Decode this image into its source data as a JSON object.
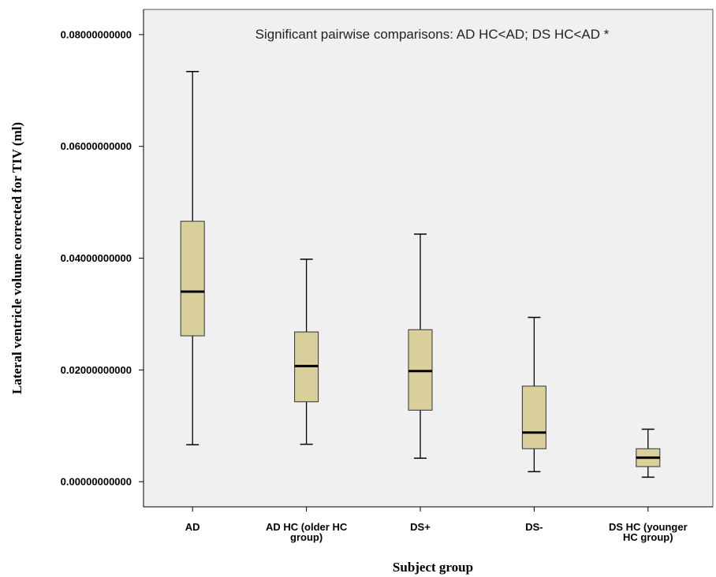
{
  "chart_data": {
    "type": "boxplot",
    "annotation": "Significant pairwise comparisons: AD HC<AD; DS HC<AD *",
    "xlabel": "Subject group",
    "ylabel": "Lateral ventricle volume corrected for TIV (ml)",
    "ylim": [
      -0.0045,
      0.0845
    ],
    "yticks": [
      0.0,
      0.02,
      0.04,
      0.06,
      0.08
    ],
    "ytick_labels": [
      "0.00000000000",
      "0.02000000000",
      "0.04000000000",
      "0.06000000000",
      "0.08000000000"
    ],
    "grid": false,
    "colors": {
      "box_fill": "#d8cf9a",
      "plot_bg": "#f0f0f0",
      "stroke": "#000000"
    },
    "categories": [
      {
        "label": [
          "AD"
        ],
        "whisker_low": 0.0066,
        "q1": 0.0261,
        "median": 0.034,
        "q3": 0.0466,
        "whisker_high": 0.0734
      },
      {
        "label": [
          "AD HC (older HC",
          "group)"
        ],
        "whisker_low": 0.0067,
        "q1": 0.0143,
        "median": 0.0207,
        "q3": 0.0268,
        "whisker_high": 0.0398
      },
      {
        "label": [
          "DS+"
        ],
        "whisker_low": 0.0042,
        "q1": 0.0128,
        "median": 0.0198,
        "q3": 0.0272,
        "whisker_high": 0.0443
      },
      {
        "label": [
          "DS-"
        ],
        "whisker_low": 0.0018,
        "q1": 0.0059,
        "median": 0.0088,
        "q3": 0.0171,
        "whisker_high": 0.0294
      },
      {
        "label": [
          "DS HC (younger",
          "HC group)"
        ],
        "whisker_low": 0.0008,
        "q1": 0.0027,
        "median": 0.0043,
        "q3": 0.0059,
        "whisker_high": 0.0094
      }
    ]
  }
}
